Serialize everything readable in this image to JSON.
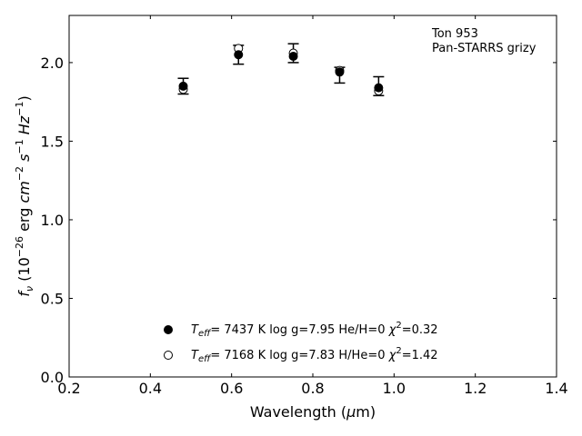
{
  "chart_data": {
    "type": "scatter",
    "xlabel": "Wavelength (μm)",
    "ylabel": "f_ν (10^-26 erg cm^-2 s^-1 Hz^-1)",
    "xlim": [
      0.2,
      1.4
    ],
    "ylim": [
      0.0,
      2.3
    ],
    "xticks": [
      0.2,
      0.4,
      0.6,
      0.8,
      1.0,
      1.2,
      1.4
    ],
    "xtick_labels": [
      "0.2",
      "0.4",
      "0.6",
      "0.8",
      "1.0",
      "1.2",
      "1.4"
    ],
    "yticks": [
      0.0,
      0.5,
      1.0,
      1.5,
      2.0
    ],
    "ytick_labels": [
      "0.0",
      "0.5",
      "1.0",
      "1.5",
      "2.0"
    ],
    "grid": false,
    "annotation": [
      "Ton 953",
      "Pan-STARRS grizy"
    ],
    "observed": {
      "x": [
        0.481,
        0.617,
        0.752,
        0.866,
        0.962
      ],
      "y": [
        1.85,
        2.05,
        2.06,
        1.92,
        1.85
      ],
      "yerr": [
        0.05,
        0.06,
        0.06,
        0.05,
        0.06
      ]
    },
    "series": [
      {
        "marker": "filled-circle",
        "label": "T_eff= 7437 K  log g=7.95  He/H=0  χ²=0.32",
        "x": [
          0.481,
          0.617,
          0.752,
          0.866,
          0.962
        ],
        "y": [
          1.85,
          2.05,
          2.04,
          1.94,
          1.84
        ]
      },
      {
        "marker": "open-circle",
        "label": "T_eff= 7168 K  log g=7.83  H/He=0  χ²=1.42",
        "x": [
          0.481,
          0.617,
          0.752,
          0.866,
          0.962
        ],
        "y": [
          1.83,
          2.09,
          2.06,
          1.95,
          1.82
        ]
      }
    ],
    "legend_position": "bottom-center"
  }
}
